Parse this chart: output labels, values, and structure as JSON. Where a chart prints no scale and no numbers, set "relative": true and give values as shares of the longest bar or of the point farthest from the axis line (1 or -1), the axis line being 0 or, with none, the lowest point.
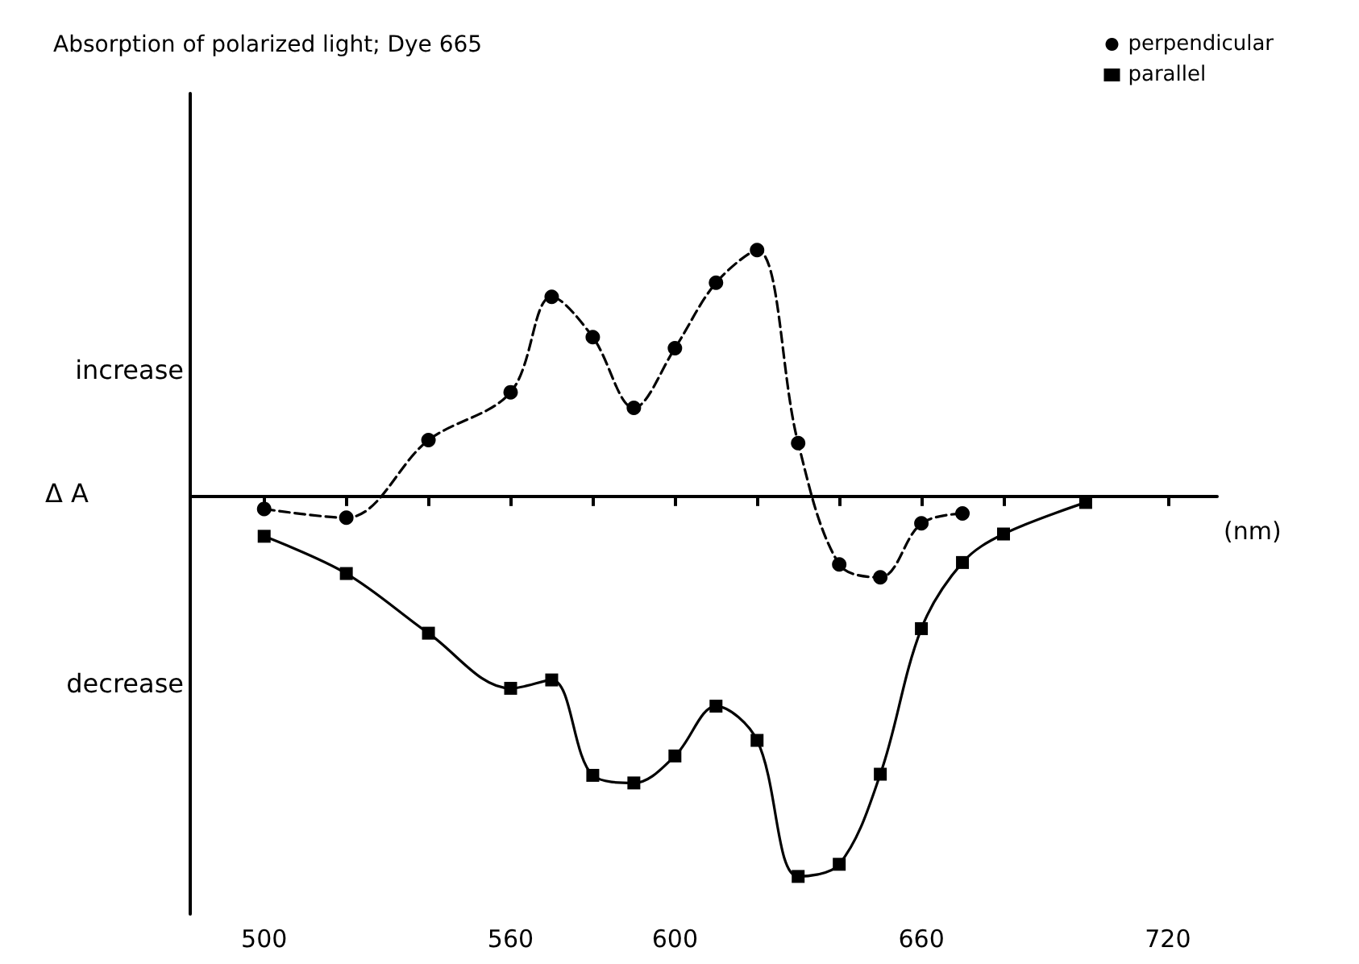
{
  "chart_data": {
    "type": "line",
    "title": "Absorption of polarized light; Dye 665",
    "xlabel": "(nm)",
    "ylabel": "Δ A",
    "annotations": [
      "increase",
      "decrease"
    ],
    "relative": true,
    "xlim": [
      482,
      732
    ],
    "xticks": [
      500,
      {
        "value": 520,
        "label": null
      },
      {
        "value": 540,
        "label": null
      },
      560,
      {
        "value": 580,
        "label": null
      },
      600,
      {
        "value": 620,
        "label": null
      },
      {
        "value": 640,
        "label": null
      },
      660,
      {
        "value": 680,
        "label": null
      },
      {
        "value": 700,
        "label": null
      },
      720
    ],
    "legend": "top right",
    "grid": false,
    "series": [
      {
        "name": "perpendicular",
        "color": "#000000",
        "marker": "circle",
        "line_style": "dashed",
        "x": [
          500,
          520,
          540,
          560,
          570,
          580,
          590,
          600,
          610,
          620,
          630,
          640,
          650,
          660,
          670
        ],
        "values": [
          -0.033,
          -0.056,
          0.148,
          0.274,
          0.525,
          0.419,
          0.233,
          0.39,
          0.562,
          0.648,
          0.14,
          -0.179,
          -0.213,
          -0.071,
          -0.045
        ]
      },
      {
        "name": "parallel",
        "color": "#000000",
        "marker": "square",
        "line_style": "solid",
        "x": [
          500,
          520,
          540,
          560,
          570,
          580,
          590,
          600,
          610,
          620,
          630,
          640,
          650,
          660,
          670,
          680,
          700
        ],
        "values": [
          -0.105,
          -0.203,
          -0.36,
          -0.505,
          -0.483,
          -0.734,
          -0.754,
          -0.683,
          -0.552,
          -0.642,
          -1,
          -0.968,
          -0.731,
          -0.348,
          -0.174,
          -0.099,
          -0.016
        ]
      }
    ]
  }
}
